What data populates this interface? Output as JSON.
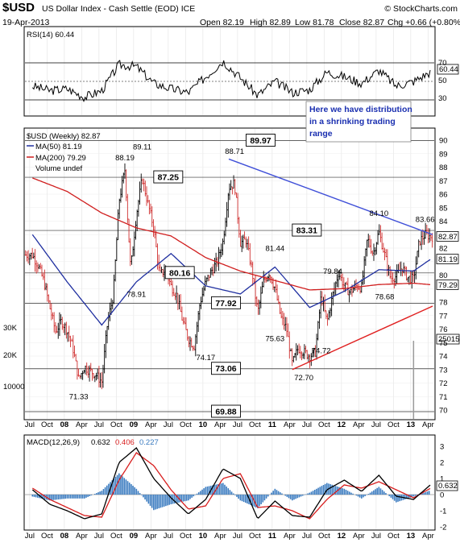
{
  "header": {
    "symbol": "$USD",
    "name": "US Dollar Index - Cash Settle (EOD) ICE",
    "brand": "© StockCharts.com",
    "date": "19-Apr-2013",
    "open": "Open 82.19",
    "high": "High 82.89",
    "low": "Low 81.78",
    "close": "Close 82.87",
    "chg": "Chg +0.66 (+0.80%)"
  },
  "rsi_panel": {
    "legend": "RSI(14) 60.44",
    "last_value": "60.44",
    "ticks": [
      "70",
      "50",
      "30"
    ]
  },
  "price_panel": {
    "legend_title": "$USD (Weekly) 82.87",
    "legend_ma50": "MA(50) 81.19",
    "legend_ma200": "MA(200) 79.29",
    "legend_volume": "Volume undef",
    "last_price": "82.87",
    "last_ma50": "81.19",
    "last_ma200": "79.29",
    "volume_last": "25015",
    "volume_ticks": [
      "30K",
      "20K",
      "10000"
    ],
    "right_ticks": [
      "90",
      "89",
      "88",
      "87",
      "86",
      "85",
      "84",
      "83",
      "82",
      "81",
      "80",
      "79",
      "78",
      "77",
      "76",
      "75",
      "74",
      "73",
      "72",
      "71",
      "70"
    ],
    "annotation": [
      "Here we have distribution",
      "in a shrinking trading",
      "range"
    ],
    "boxed_levels": [
      "89.97",
      "87.25",
      "83.31",
      "80.16",
      "77.92",
      "73.06",
      "69.88"
    ],
    "peak_labels": [
      "89.11",
      "88.19",
      "88.71",
      "81.44",
      "79.84",
      "84.10",
      "83.66",
      "78.91",
      "74.17",
      "75.63",
      "72.70",
      "74.72",
      "78.68",
      "71.33"
    ]
  },
  "macd_panel": {
    "legend_prefix": "MACD(12,26,9)",
    "legend_macd": "0.632",
    "legend_signal": "0.406",
    "legend_hist": "0.227",
    "last_value": "0.632",
    "ticks": [
      "3",
      "2",
      "1",
      "0",
      "-1",
      "-2"
    ]
  },
  "x_axis": {
    "labels": [
      "Jul",
      "Oct",
      "08",
      "Apr",
      "Jul",
      "Oct",
      "09",
      "Apr",
      "Jul",
      "Oct",
      "10",
      "Apr",
      "Jul",
      "Oct",
      "11",
      "Apr",
      "Jul",
      "Oct",
      "12",
      "Apr",
      "Jul",
      "Oct",
      "13",
      "Apr"
    ]
  },
  "colors": {
    "up_candle": "#000000",
    "down_candle": "#d03030",
    "ma50": "#1f2fa0",
    "ma200": "#d01e1e",
    "upper_trendline": "#3f4fd8",
    "lower_trendline": "#e02020",
    "macd_line": "#000000",
    "signal_line": "#d81e1e",
    "histogram": "#3a7bc0",
    "rsi_line": "#000000",
    "annotation_text": "#1a2fb0"
  },
  "chart_data": [
    {
      "type": "line",
      "title": "US Dollar Index - Cash Settle (EOD) ICE",
      "series": [
        {
          "name": "$USD (Weekly)",
          "x": [
            "2007-07",
            "2007-08",
            "2007-09",
            "2007-10",
            "2007-11",
            "2007-12",
            "2008-01",
            "2008-02",
            "2008-03",
            "2008-04",
            "2008-05",
            "2008-06",
            "2008-07",
            "2008-08",
            "2008-09",
            "2008-10",
            "2008-11",
            "2008-12",
            "2009-01",
            "2009-02",
            "2009-03",
            "2009-04",
            "2009-05",
            "2009-06",
            "2009-07",
            "2009-08",
            "2009-09",
            "2009-10",
            "2009-11",
            "2009-12",
            "2010-01",
            "2010-02",
            "2010-03",
            "2010-04",
            "2010-05",
            "2010-06",
            "2010-07",
            "2010-08",
            "2010-09",
            "2010-10",
            "2010-11",
            "2010-12",
            "2011-01",
            "2011-02",
            "2011-03",
            "2011-04",
            "2011-05",
            "2011-06",
            "2011-07",
            "2011-08",
            "2011-09",
            "2011-10",
            "2011-11",
            "2011-12",
            "2012-01",
            "2012-02",
            "2012-03",
            "2012-04",
            "2012-05",
            "2012-06",
            "2012-07",
            "2012-08",
            "2012-09",
            "2012-10",
            "2012-11",
            "2012-12",
            "2013-01",
            "2013-02",
            "2013-03",
            "2013-04"
          ],
          "values": [
            81.5,
            80.7,
            79.5,
            77.6,
            75.8,
            76.6,
            75.9,
            74.6,
            72.3,
            73.2,
            72.9,
            72.6,
            72.1,
            76.5,
            78.5,
            85.5,
            87.8,
            80.4,
            84.5,
            87.2,
            85.3,
            83.5,
            80.0,
            80.4,
            79.2,
            78.5,
            76.6,
            75.3,
            74.7,
            77.9,
            79.5,
            80.3,
            81.0,
            82.5,
            86.5,
            86.8,
            82.4,
            82.6,
            80.4,
            77.2,
            79.5,
            80.2,
            79.0,
            76.9,
            76.0,
            73.4,
            74.6,
            74.3,
            74.0,
            74.3,
            78.5,
            76.5,
            78.5,
            80.2,
            79.2,
            78.7,
            79.2,
            79.1,
            82.7,
            81.6,
            83.2,
            81.5,
            79.8,
            79.9,
            80.6,
            79.8,
            79.7,
            82.5,
            83.0,
            82.87
          ]
        },
        {
          "name": "MA(50)",
          "x": [
            "2007-07",
            "2008-01",
            "2008-07",
            "2009-01",
            "2009-07",
            "2010-01",
            "2010-07",
            "2011-01",
            "2011-07",
            "2012-01",
            "2012-07",
            "2013-01",
            "2013-04"
          ],
          "values": [
            83.0,
            79.5,
            76.3,
            79.5,
            81.6,
            79.2,
            78.6,
            80.6,
            77.6,
            78.8,
            80.4,
            80.3,
            81.19
          ]
        },
        {
          "name": "MA(200)",
          "x": [
            "2007-07",
            "2008-01",
            "2008-07",
            "2009-01",
            "2009-07",
            "2010-01",
            "2010-07",
            "2011-01",
            "2011-07",
            "2012-01",
            "2012-07",
            "2013-01",
            "2013-04"
          ],
          "values": [
            87.2,
            86.2,
            84.6,
            83.5,
            82.9,
            81.3,
            80.3,
            79.6,
            78.9,
            79.0,
            79.3,
            79.4,
            79.29
          ]
        }
      ]
    },
    {
      "type": "line",
      "title": "RSI(14)",
      "ylim": [
        30,
        70
      ],
      "series": [
        {
          "name": "RSI(14)",
          "x": [
            "2007-07",
            "2007-10",
            "2008-01",
            "2008-04",
            "2008-07",
            "2008-10",
            "2009-01",
            "2009-04",
            "2009-07",
            "2009-10",
            "2010-01",
            "2010-04",
            "2010-07",
            "2010-10",
            "2011-01",
            "2011-04",
            "2011-07",
            "2011-10",
            "2012-01",
            "2012-04",
            "2012-07",
            "2012-10",
            "2013-01",
            "2013-04"
          ],
          "values": [
            45,
            40,
            42,
            33,
            40,
            68,
            66,
            48,
            42,
            38,
            55,
            72,
            54,
            35,
            50,
            38,
            41,
            60,
            55,
            48,
            62,
            45,
            50,
            60.44
          ]
        }
      ]
    },
    {
      "type": "line",
      "title": "MACD(12,26,9)",
      "series": [
        {
          "name": "MACD",
          "x": [
            "2007-07",
            "2007-10",
            "2008-01",
            "2008-04",
            "2008-07",
            "2008-10",
            "2009-01",
            "2009-04",
            "2009-07",
            "2009-10",
            "2010-01",
            "2010-04",
            "2010-07",
            "2010-10",
            "2011-01",
            "2011-04",
            "2011-07",
            "2011-10",
            "2012-01",
            "2012-04",
            "2012-07",
            "2012-10",
            "2013-01",
            "2013-04"
          ],
          "values": [
            0.3,
            -0.6,
            -1.0,
            -1.5,
            -1.2,
            2.0,
            2.9,
            1.0,
            -0.2,
            -1.2,
            -0.3,
            1.6,
            1.0,
            -1.5,
            -0.4,
            -1.3,
            -1.4,
            0.3,
            0.9,
            0.2,
            1.2,
            -0.1,
            -0.3,
            0.632
          ]
        },
        {
          "name": "Signal",
          "x": [
            "2007-07",
            "2007-10",
            "2008-01",
            "2008-04",
            "2008-07",
            "2008-10",
            "2009-01",
            "2009-04",
            "2009-07",
            "2009-10",
            "2010-01",
            "2010-04",
            "2010-07",
            "2010-10",
            "2011-01",
            "2011-04",
            "2011-07",
            "2011-10",
            "2012-01",
            "2012-04",
            "2012-07",
            "2012-10",
            "2013-01",
            "2013-04"
          ],
          "values": [
            0.4,
            -0.3,
            -0.8,
            -1.3,
            -1.4,
            0.9,
            2.6,
            1.8,
            0.3,
            -0.9,
            -0.7,
            1.0,
            1.3,
            -0.8,
            -0.7,
            -1.0,
            -1.5,
            -0.3,
            0.6,
            0.4,
            0.8,
            0.3,
            -0.2,
            0.406
          ]
        }
      ]
    }
  ]
}
